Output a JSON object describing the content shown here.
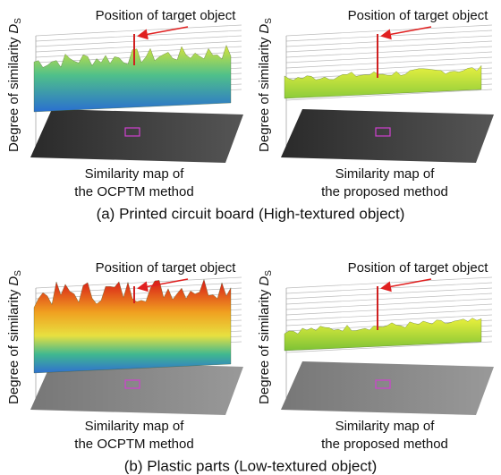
{
  "figures": [
    {
      "caption": "(a) Printed circuit board (High-textured object)",
      "panels": [
        {
          "annotation": "Position of target object",
          "y_label": {
            "text": "Degree of similarity",
            "symbol": "D",
            "subscript": "S"
          },
          "caption_lines": [
            "Similarity map of",
            "the OCPTM method"
          ]
        },
        {
          "annotation": "Position of target object",
          "y_label": {
            "text": "Degree of similarity",
            "symbol": "D",
            "subscript": "S"
          },
          "caption_lines": [
            "Similarity map of",
            "the proposed method"
          ]
        }
      ]
    },
    {
      "caption": "(b) Plastic parts (Low-textured object)",
      "panels": [
        {
          "annotation": "Position of target object",
          "y_label": {
            "text": "Degree of similarity",
            "symbol": "D",
            "subscript": "S"
          },
          "caption_lines": [
            "Similarity map of",
            "the OCPTM method"
          ]
        },
        {
          "annotation": "Position of target object",
          "y_label": {
            "text": "Degree of similarity",
            "symbol": "D",
            "subscript": "S"
          },
          "caption_lines": [
            "Similarity map of",
            "the proposed method"
          ]
        }
      ]
    }
  ]
}
